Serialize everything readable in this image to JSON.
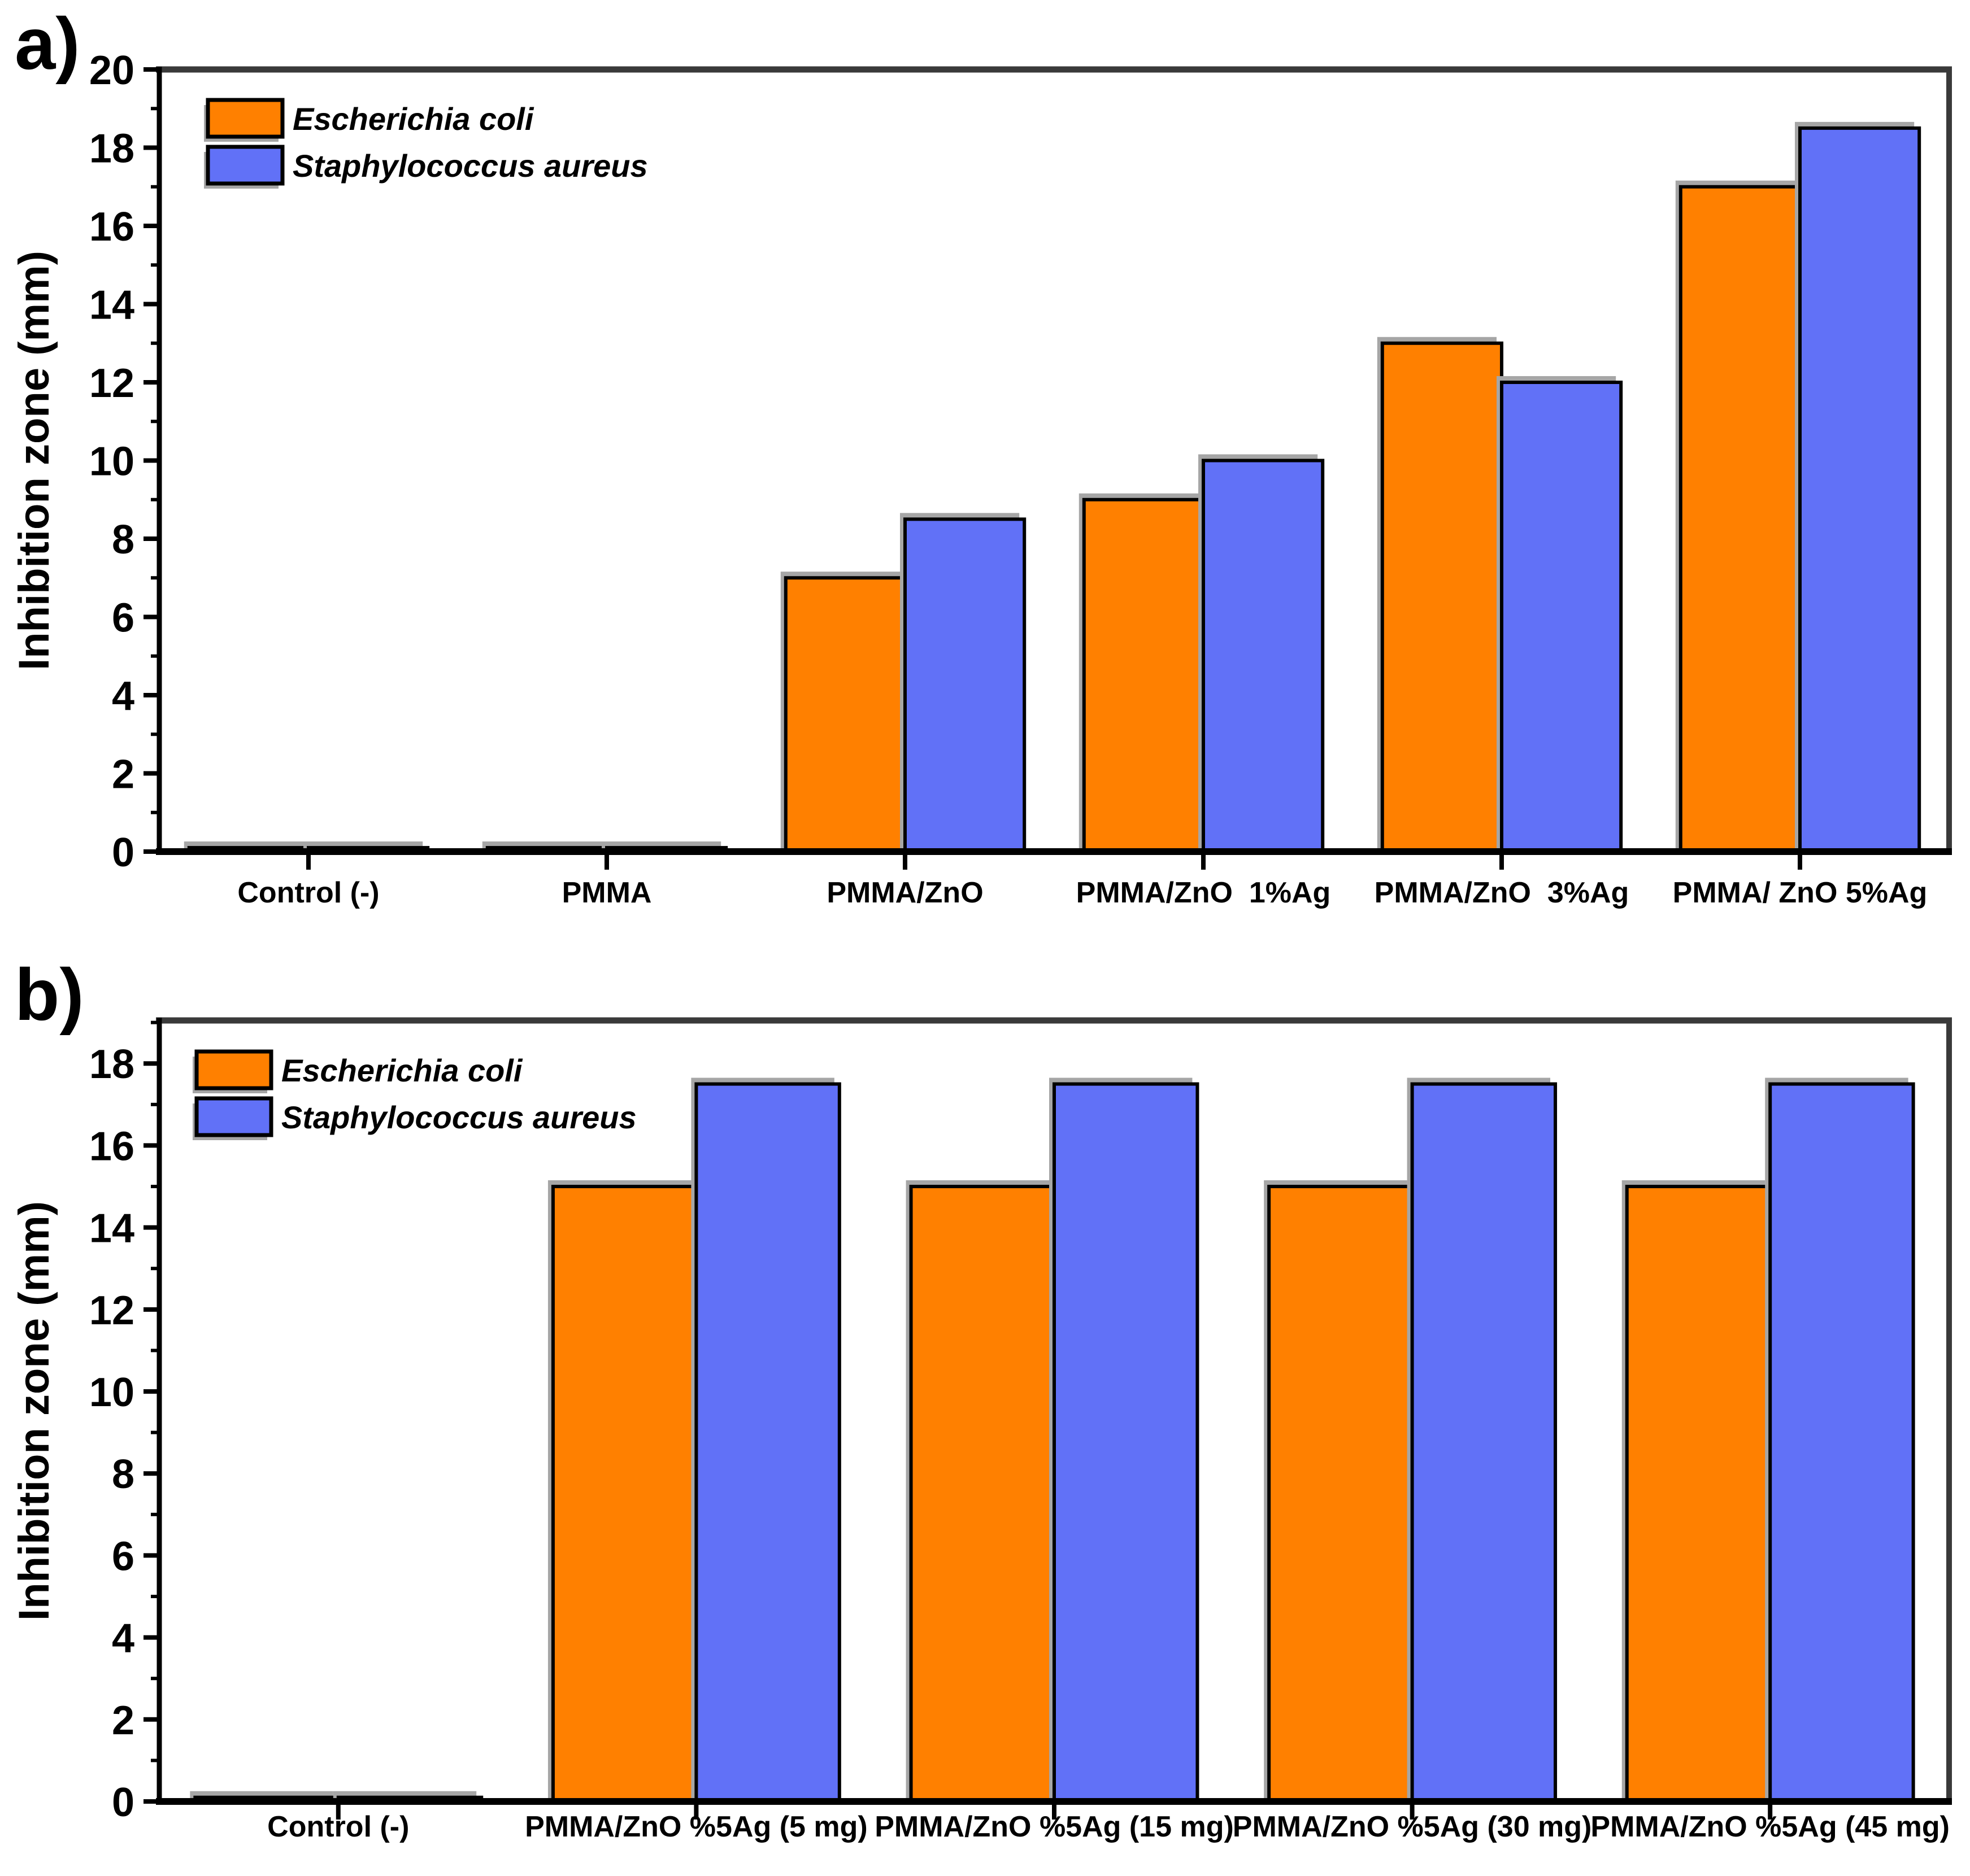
{
  "figure": {
    "background": "#FFFFFF",
    "colors": {
      "ecoli": "#FF8000",
      "saureus": "#6171F7",
      "bar_edge": "#000000",
      "shadow": "#A6A6A6",
      "frame": "#3A3A3A",
      "axis": "#000000",
      "text": "#000000"
    }
  },
  "chart_data": [
    {
      "type": "bar",
      "panel_label": "a)",
      "ylabel": "Inhibition zone (mm)",
      "xlabel": "",
      "ylim": [
        0,
        20
      ],
      "ytick_step": 2,
      "minor_tick_step": 1,
      "grid": false,
      "legend_position": "top-left",
      "categories": [
        "Control (-)",
        "PMMA",
        "PMMA/ZnO",
        "PMMA/ZnO  1%Ag",
        "PMMA/ZnO  3%Ag",
        "PMMA/ ZnO 5%Ag"
      ],
      "series": [
        {
          "name": "Escherichia coli",
          "color_key": "ecoli",
          "values": [
            0.1,
            0.1,
            7,
            9,
            13,
            17
          ]
        },
        {
          "name": "Staphylococcus aureus",
          "color_key": "saureus",
          "values": [
            0.1,
            0.1,
            8.5,
            10,
            12,
            18.5
          ]
        }
      ]
    },
    {
      "type": "bar",
      "panel_label": "b)",
      "ylabel": "Inhibition zone (mm)",
      "xlabel": "",
      "ylim": [
        0,
        19
      ],
      "ytick_step": 2,
      "minor_tick_step": 1,
      "grid": false,
      "legend_position": "top-left",
      "categories": [
        "Control (-)",
        "PMMA/ZnO %5Ag (5 mg)",
        "PMMA/ZnO %5Ag (15 mg)",
        "PMMA/ZnO %5Ag (30 mg)",
        "PMMA/ZnO %5Ag (45 mg)"
      ],
      "series": [
        {
          "name": "Escherichia coli",
          "color_key": "ecoli",
          "values": [
            0.1,
            15,
            15,
            15,
            15
          ]
        },
        {
          "name": "Staphylococcus aureus",
          "color_key": "saureus",
          "values": [
            0.1,
            17.5,
            17.5,
            17.5,
            17.5
          ]
        }
      ]
    }
  ]
}
